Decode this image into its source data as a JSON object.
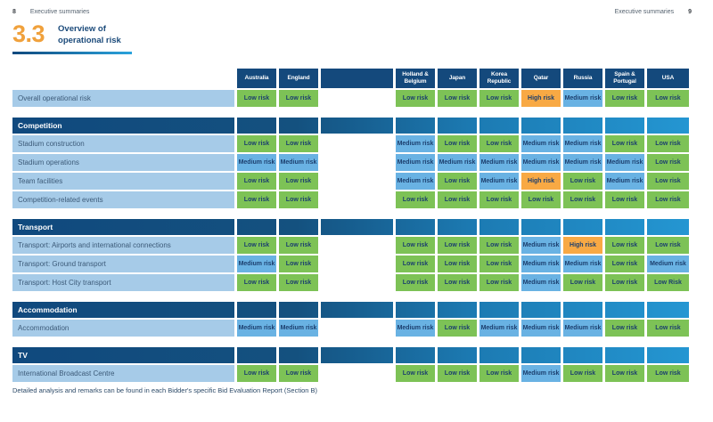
{
  "page": {
    "left_number": "8",
    "left_label": "Executive summaries",
    "right_label": "Executive summaries",
    "right_number": "9"
  },
  "title": {
    "number": "3.3",
    "line1": "Overview of",
    "line2": "operational risk"
  },
  "colors": {
    "low": "#7dc256",
    "medium": "#69b2e3",
    "high": "#f8a944",
    "navy": "#14497c",
    "label-bg": "#a6cbe8",
    "accent": "#f0a13c",
    "cell-text": "#1c3f6e",
    "grad-start": "#10497e",
    "grad-end": "#2496d2"
  },
  "table": {
    "columns": [
      "Australia",
      "England",
      "Holland &\nBelgium",
      "Japan",
      "Korea Republic",
      "Qatar",
      "Russia",
      "Spain &\nPortugal",
      "USA"
    ],
    "sections": [
      {
        "header": null,
        "rows": [
          {
            "label": "Overall operational risk",
            "values": [
              "Low risk",
              "Low risk",
              "Low risk",
              "Low risk",
              "Low risk",
              "High risk",
              "Medium risk",
              "Low risk",
              "Low risk"
            ]
          }
        ]
      },
      {
        "header": "Competition",
        "rows": [
          {
            "label": "Stadium construction",
            "values": [
              "Low risk",
              "Low risk",
              "Medium risk",
              "Low risk",
              "Low risk",
              "Medium risk",
              "Medium risk",
              "Low risk",
              "Low risk"
            ]
          },
          {
            "label": "Stadium operations",
            "values": [
              "Medium risk",
              "Medium risk",
              "Medium risk",
              "Medium risk",
              "Medium risk",
              "Medium risk",
              "Medium risk",
              "Medium risk",
              "Low risk"
            ]
          },
          {
            "label": "Team facilities",
            "values": [
              "Low risk",
              "Low risk",
              "Medium risk",
              "Low risk",
              "Medium risk",
              "High risk",
              "Low risk",
              "Medium risk",
              "Low risk"
            ]
          },
          {
            "label": "Competition-related events",
            "values": [
              "Low risk",
              "Low risk",
              "Low risk",
              "Low risk",
              "Low risk",
              "Low risk",
              "Low risk",
              "Low risk",
              "Low risk"
            ]
          }
        ]
      },
      {
        "header": "Transport",
        "rows": [
          {
            "label": "Transport: Airports and international connections",
            "values": [
              "Low risk",
              "Low risk",
              "Low risk",
              "Low risk",
              "Low risk",
              "Medium risk",
              "High risk",
              "Low risk",
              "Low risk"
            ]
          },
          {
            "label": "Transport: Ground transport",
            "values": [
              "Medium risk",
              "Low risk",
              "Low risk",
              "Low risk",
              "Low risk",
              "Medium risk",
              "Medium risk",
              "Low risk",
              "Medium risk"
            ]
          },
          {
            "label": "Transport: Host City transport",
            "values": [
              "Low risk",
              "Low risk",
              "Low risk",
              "Low risk",
              "Low risk",
              "Medium risk",
              "Low risk",
              "Low risk",
              "Low Risk"
            ]
          }
        ]
      },
      {
        "header": "Accommodation",
        "rows": [
          {
            "label": "Accommodation",
            "values": [
              "Medium risk",
              "Medium risk",
              "Medium risk",
              "Low risk",
              "Medium risk",
              "Medium risk",
              "Medium risk",
              "Low risk",
              "Low risk"
            ]
          }
        ]
      },
      {
        "header": "TV",
        "rows": [
          {
            "label": "International Broadcast Centre",
            "values": [
              "Low risk",
              "Low risk",
              "Low risk",
              "Low risk",
              "Low risk",
              "Medium risk",
              "Low risk",
              "Low risk",
              "Low risk"
            ]
          }
        ]
      }
    ]
  },
  "footnote": "Detailed analysis and remarks can be found in each Bidder's specific Bid Evaluation Report (Section B)"
}
